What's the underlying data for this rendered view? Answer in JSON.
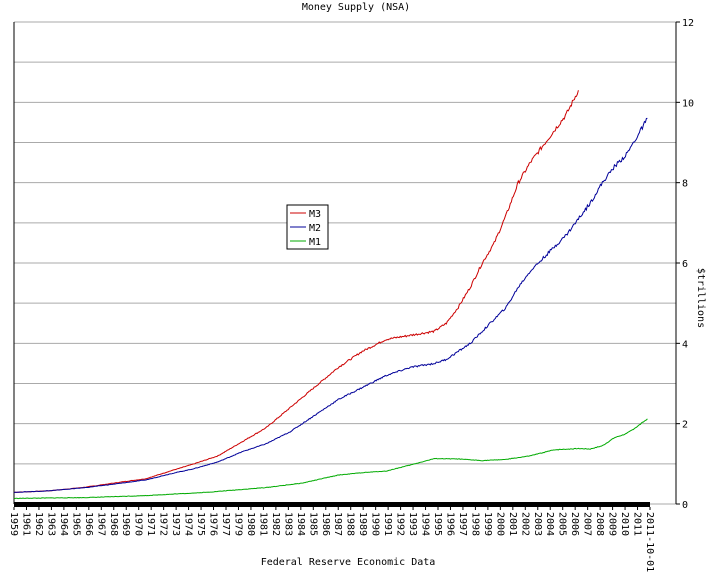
{
  "chart_data": {
    "type": "line",
    "title": "Money Supply (NSA)",
    "xlabel": "Federal Reserve Economic Data",
    "ylabel": "$trillions",
    "ylim": [
      0,
      12
    ],
    "y_ticks": [
      0,
      2,
      4,
      6,
      8,
      10,
      12
    ],
    "grid": true,
    "legend_position": "center-left",
    "x_tick_labels": [
      "1959",
      "1961",
      "1962",
      "1963",
      "1964",
      "1965",
      "1966",
      "1967",
      "1968",
      "1969",
      "1970",
      "1971",
      "1972",
      "1973",
      "1974",
      "1975",
      "1976",
      "1977",
      "1979",
      "1980",
      "1981",
      "1982",
      "1983",
      "1984",
      "1985",
      "1986",
      "1987",
      "1988",
      "1989",
      "1990",
      "1991",
      "1992",
      "1993",
      "1994",
      "1995",
      "1996",
      "1997",
      "1998",
      "1999",
      "2000",
      "2001",
      "2002",
      "2003",
      "2004",
      "2005",
      "2006",
      "2007",
      "2008",
      "2009",
      "2010",
      "2011",
      "2011-10-01"
    ],
    "series": [
      {
        "name": "M3",
        "color": "#cc0000",
        "points": [
          [
            1959,
            0.29
          ],
          [
            1962,
            0.33
          ],
          [
            1965,
            0.42
          ],
          [
            1968,
            0.55
          ],
          [
            1970,
            0.63
          ],
          [
            1972,
            0.82
          ],
          [
            1974,
            1.0
          ],
          [
            1976,
            1.2
          ],
          [
            1978,
            1.55
          ],
          [
            1980,
            1.9
          ],
          [
            1982,
            2.4
          ],
          [
            1984,
            2.9
          ],
          [
            1986,
            3.4
          ],
          [
            1988,
            3.8
          ],
          [
            1990,
            4.1
          ],
          [
            1992,
            4.2
          ],
          [
            1994,
            4.3
          ],
          [
            1995,
            4.5
          ],
          [
            1996,
            4.9
          ],
          [
            1997,
            5.4
          ],
          [
            1998,
            6.0
          ],
          [
            1999,
            6.5
          ],
          [
            2000,
            7.2
          ],
          [
            2001,
            8.0
          ],
          [
            2002,
            8.5
          ],
          [
            2003,
            8.9
          ],
          [
            2004,
            9.3
          ],
          [
            2005,
            9.7
          ],
          [
            2006,
            10.3
          ]
        ]
      },
      {
        "name": "M2",
        "color": "#000099",
        "points": [
          [
            1959,
            0.29
          ],
          [
            1962,
            0.33
          ],
          [
            1965,
            0.41
          ],
          [
            1968,
            0.52
          ],
          [
            1970,
            0.6
          ],
          [
            1972,
            0.75
          ],
          [
            1974,
            0.88
          ],
          [
            1976,
            1.05
          ],
          [
            1978,
            1.3
          ],
          [
            1980,
            1.5
          ],
          [
            1982,
            1.8
          ],
          [
            1984,
            2.2
          ],
          [
            1986,
            2.6
          ],
          [
            1988,
            2.9
          ],
          [
            1990,
            3.2
          ],
          [
            1992,
            3.4
          ],
          [
            1994,
            3.5
          ],
          [
            1995,
            3.6
          ],
          [
            1996,
            3.8
          ],
          [
            1997,
            4.0
          ],
          [
            1998,
            4.3
          ],
          [
            1999,
            4.6
          ],
          [
            2000,
            4.9
          ],
          [
            2001,
            5.4
          ],
          [
            2002,
            5.8
          ],
          [
            2003,
            6.1
          ],
          [
            2004,
            6.4
          ],
          [
            2005,
            6.7
          ],
          [
            2006,
            7.1
          ],
          [
            2007,
            7.5
          ],
          [
            2008,
            8.0
          ],
          [
            2009,
            8.4
          ],
          [
            2010,
            8.7
          ],
          [
            2011,
            9.2
          ],
          [
            2011.75,
            9.6
          ]
        ]
      },
      {
        "name": "M1",
        "color": "#00aa00",
        "points": [
          [
            1959,
            0.14
          ],
          [
            1965,
            0.16
          ],
          [
            1970,
            0.21
          ],
          [
            1975,
            0.29
          ],
          [
            1980,
            0.41
          ],
          [
            1983,
            0.52
          ],
          [
            1986,
            0.72
          ],
          [
            1988,
            0.78
          ],
          [
            1990,
            0.82
          ],
          [
            1992,
            0.97
          ],
          [
            1994,
            1.13
          ],
          [
            1996,
            1.12
          ],
          [
            1998,
            1.08
          ],
          [
            2000,
            1.11
          ],
          [
            2002,
            1.2
          ],
          [
            2004,
            1.35
          ],
          [
            2006,
            1.38
          ],
          [
            2007,
            1.37
          ],
          [
            2008,
            1.45
          ],
          [
            2009,
            1.65
          ],
          [
            2010,
            1.75
          ],
          [
            2011,
            1.95
          ],
          [
            2011.75,
            2.12
          ]
        ]
      }
    ]
  }
}
